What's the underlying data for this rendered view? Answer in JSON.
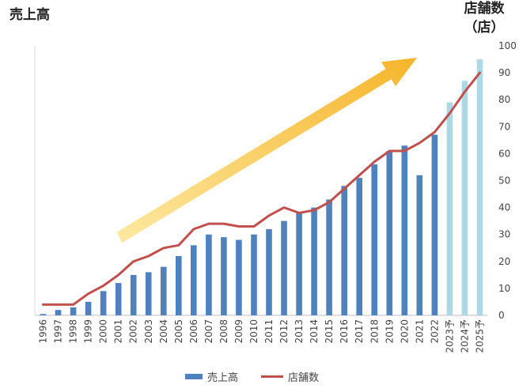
{
  "chart_data": {
    "type": "bar",
    "title": "",
    "left_axis_label": "売上高",
    "right_axis_label_line1": "店舗数",
    "right_axis_label_line2": "（店）",
    "categories": [
      "1996",
      "1997",
      "1998",
      "1999",
      "2000",
      "2001",
      "2002",
      "2003",
      "2004",
      "2005",
      "2006",
      "2007",
      "2008",
      "2009",
      "2010",
      "2011",
      "2012",
      "2013",
      "2014",
      "2015",
      "2016",
      "2017",
      "2018",
      "2019",
      "2020",
      "2021",
      "2022",
      "2023予",
      "2024予",
      "2025予"
    ],
    "forecast_flags": [
      false,
      false,
      false,
      false,
      false,
      false,
      false,
      false,
      false,
      false,
      false,
      false,
      false,
      false,
      false,
      false,
      false,
      false,
      false,
      false,
      false,
      false,
      false,
      false,
      false,
      false,
      false,
      true,
      true,
      true
    ],
    "series": [
      {
        "name": "売上高",
        "kind": "bar",
        "axis": "left",
        "values": [
          0.5,
          2,
          3,
          5,
          9,
          12,
          15,
          16,
          18,
          22,
          26,
          30,
          29,
          28,
          30,
          32,
          35,
          38,
          40,
          43,
          48,
          51,
          56,
          61,
          63,
          52,
          67,
          79,
          87,
          95
        ]
      },
      {
        "name": "店舗数",
        "kind": "line",
        "axis": "right",
        "values": [
          4,
          4,
          4,
          8,
          11,
          15,
          20,
          22,
          25,
          26,
          32,
          34,
          34,
          33,
          33,
          37,
          40,
          38,
          39,
          42,
          47,
          52,
          57,
          61,
          61,
          64,
          68,
          75,
          83,
          90
        ]
      }
    ],
    "y_right": {
      "min": 0,
      "max": 100,
      "ticks": [
        "0",
        "10",
        "20",
        "30",
        "40",
        "50",
        "60",
        "70",
        "80",
        "90",
        "100"
      ]
    },
    "y_left_show_ticks": false,
    "grid": false,
    "legend_position": "bottom",
    "colors": {
      "bar": "#4f81bd",
      "bar_forecast": "#add8e6",
      "line": "#c0504d",
      "arrow_start": "#fde9a2",
      "arrow_end": "#f6b52b"
    }
  }
}
